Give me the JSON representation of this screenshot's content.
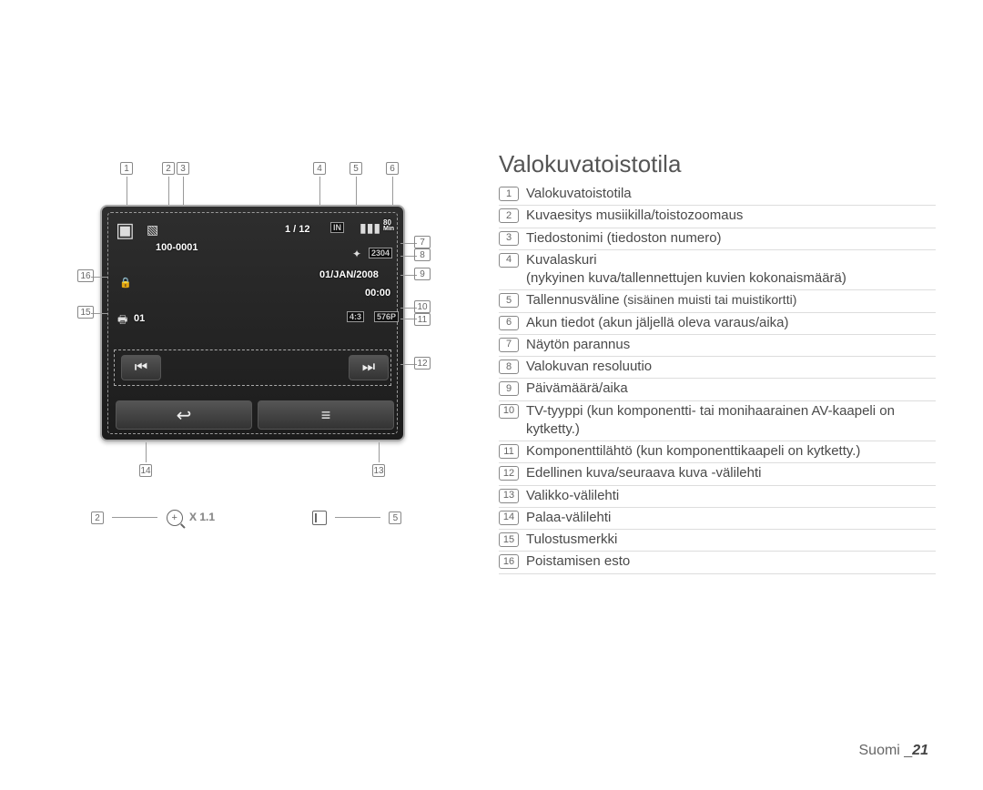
{
  "title": "Valokuvatoistotila",
  "footer": {
    "label": "Suomi",
    "page": "21"
  },
  "lcd": {
    "file_number": "100-0001",
    "image_counter": "1 / 12",
    "storage": "IN",
    "battery_min": "80",
    "battery_min_label": "Min",
    "resolution": "2304",
    "date": "01/JAN/2008",
    "time": "00:00",
    "print_count": "01",
    "aspect": "4:3",
    "tv_out": "576P",
    "zoom_label": "X 1.1"
  },
  "callouts": {
    "top": [
      "1",
      "2",
      "3",
      "4",
      "5",
      "6"
    ],
    "right": [
      "7",
      "8",
      "9",
      "10",
      "11",
      "12"
    ],
    "left": [
      "16",
      "15"
    ],
    "bottom": [
      "14",
      "13"
    ],
    "zoom_left": "2",
    "zoom_right": "5"
  },
  "legend": [
    {
      "n": "1",
      "text": "Valokuvatoistotila"
    },
    {
      "n": "2",
      "text": "Kuvaesitys musiikilla/toistozoomaus"
    },
    {
      "n": "3",
      "text": "Tiedostonimi (tiedoston numero)"
    },
    {
      "n": "4",
      "text": "Kuvalaskuri",
      "sub": "(nykyinen kuva/tallennettujen kuvien kokonaismäärä)"
    },
    {
      "n": "5",
      "text": "Tallennusväline ",
      "paren": "(sisäinen muisti tai muistikortti)"
    },
    {
      "n": "6",
      "text": "Akun tiedot (akun jäljellä oleva varaus/aika)"
    },
    {
      "n": "7",
      "text": "Näytön parannus"
    },
    {
      "n": "8",
      "text": "Valokuvan resoluutio"
    },
    {
      "n": "9",
      "text": "Päivämäärä/aika"
    },
    {
      "n": "10",
      "text": "TV-tyyppi (kun komponentti- tai monihaarainen AV-kaapeli on kytketty.)"
    },
    {
      "n": "11",
      "text": "Komponenttilähtö (kun komponenttikaapeli on kytketty.)"
    },
    {
      "n": "12",
      "text": "Edellinen kuva/seuraava kuva -välilehti"
    },
    {
      "n": "13",
      "text": "Valikko-välilehti"
    },
    {
      "n": "14",
      "text": "Palaa-välilehti"
    },
    {
      "n": "15",
      "text": "Tulostusmerkki"
    },
    {
      "n": "16",
      "text": "Poistamisen esto"
    }
  ],
  "colors": {
    "text": "#4a4a4a",
    "muted": "#777777",
    "rule": "rgba(120,120,120,0.25)",
    "lcd_bg_top": "#2e2e2e",
    "lcd_bg_bottom": "#1c1c1c"
  }
}
